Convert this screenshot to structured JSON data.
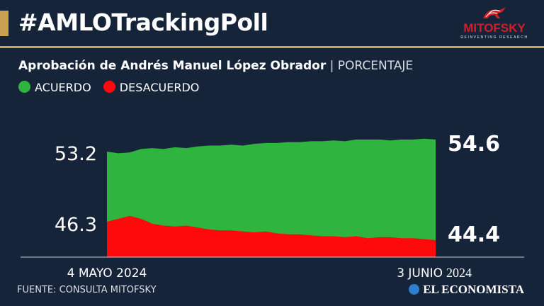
{
  "header": {
    "hashtag": "#AMLOTrackingPoll",
    "logo_name": "MITOFSKY",
    "logo_tagline": "REINVENTING RESEARCH",
    "logo_icon": "running-horses-logo-icon"
  },
  "subtitle": {
    "main": "Aprobación de Andrés Manuel López Obrador",
    "separator": "|",
    "unit": "PORCENTAJE"
  },
  "colors": {
    "background": "#16243a",
    "accent": "#c9a14f",
    "acuerdo": "#2fb53f",
    "desacuerdo": "#ff0a0a",
    "logo_red": "#d21f26"
  },
  "legend": [
    {
      "label": "ACUERDO",
      "color": "#2fb53f"
    },
    {
      "label": "DESACUERDO",
      "color": "#ff0a0a"
    }
  ],
  "chart_data": {
    "type": "area",
    "title": "Aprobación de Andrés Manuel López Obrador",
    "unit": "PORCENTAJE",
    "x_start_label": "4 MAYO 2024",
    "x_end_label_main": "3 JUNIO",
    "x_end_label_year": "2024",
    "series": [
      {
        "name": "ACUERDO",
        "color": "#2fb53f",
        "values": [
          53.2,
          53.0,
          53.1,
          53.5,
          53.6,
          53.5,
          53.7,
          53.6,
          53.8,
          53.9,
          53.9,
          54.0,
          53.9,
          54.1,
          54.2,
          54.2,
          54.3,
          54.3,
          54.4,
          54.4,
          54.5,
          54.4,
          54.6,
          54.6,
          54.6,
          54.5,
          54.6,
          54.6,
          54.7,
          54.6
        ],
        "start_label": "53.2",
        "end_label": "54.6"
      },
      {
        "name": "DESACUERDO",
        "color": "#ff0a0a",
        "values": [
          46.3,
          46.6,
          46.9,
          46.6,
          46.1,
          45.9,
          45.8,
          45.9,
          45.7,
          45.5,
          45.4,
          45.4,
          45.3,
          45.2,
          45.3,
          45.1,
          45.0,
          45.0,
          44.9,
          44.8,
          44.8,
          44.7,
          44.8,
          44.6,
          44.7,
          44.7,
          44.6,
          44.6,
          44.5,
          44.4
        ],
        "start_label": "46.3",
        "end_label": "44.4"
      }
    ],
    "grid": false,
    "legend_position": "top-left"
  },
  "footer": {
    "source": "FUENTE: CONSULTA MITOFSKY",
    "brand": "EL ECONOMISTA",
    "brand_icon": "el-economista-logo-icon"
  }
}
